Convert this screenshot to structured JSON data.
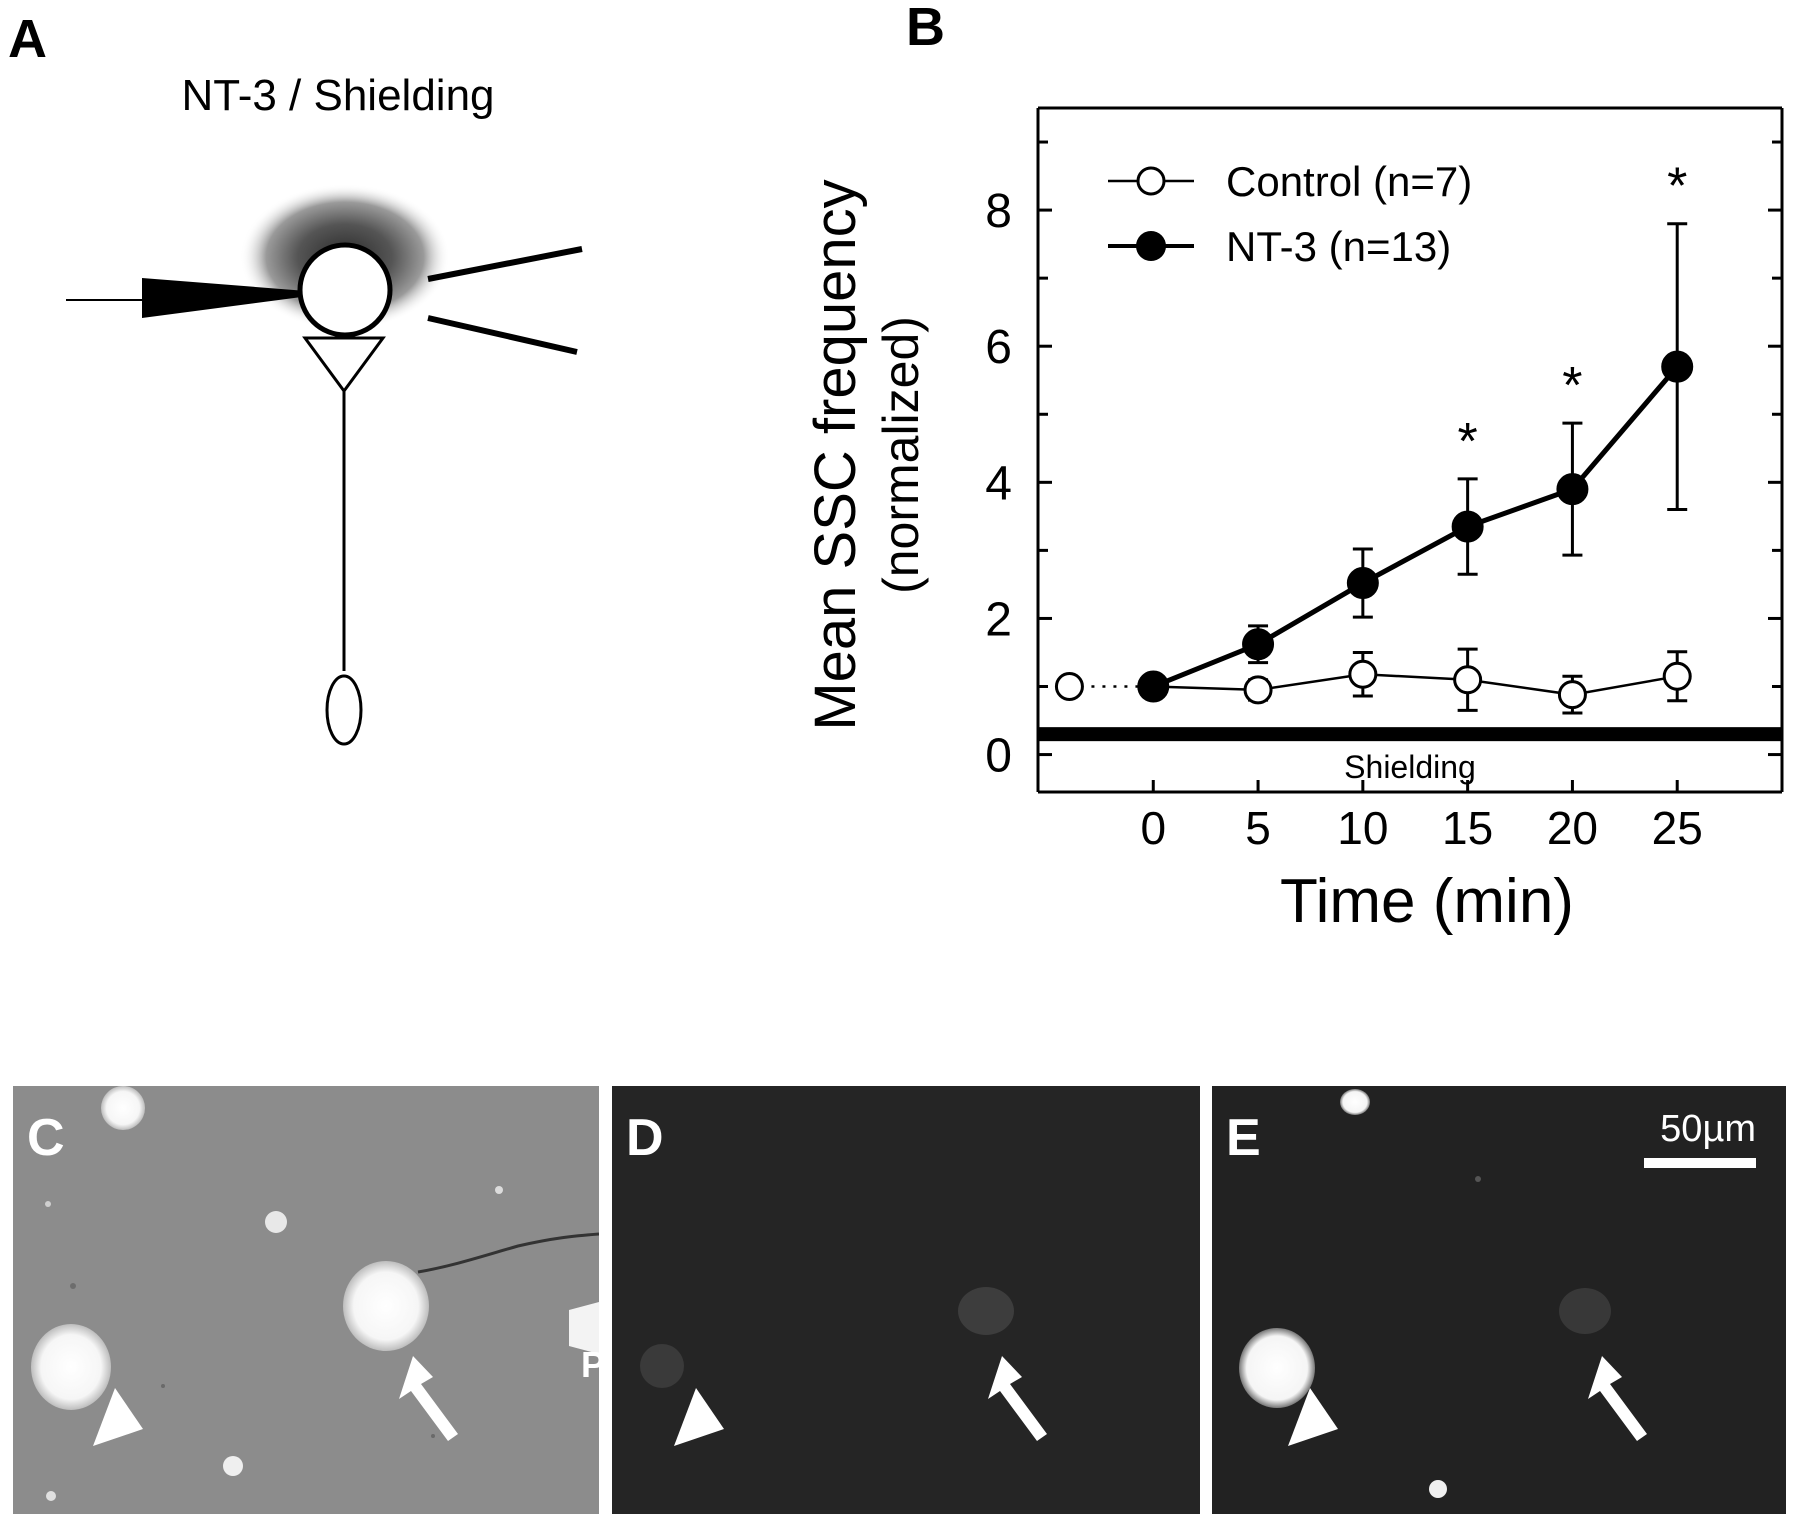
{
  "panels": {
    "a_letter": "A",
    "b_letter": "B",
    "c_letter": "C",
    "d_letter": "D",
    "e_letter": "E"
  },
  "panel_a": {
    "title": "NT-3 / Shielding"
  },
  "panel_e": {
    "scale_bar_label": "50µm"
  },
  "panel_c": {
    "pipette_label": "P"
  },
  "chart_data": {
    "type": "line",
    "xlabel": "Time (min)",
    "ylabel_line1": "Mean SSC frequency",
    "ylabel_line2": "(normalized)",
    "xlim": [
      -5.5,
      30
    ],
    "ylim": [
      -0.55,
      9.5
    ],
    "xticks": [
      0,
      5,
      10,
      15,
      20,
      25
    ],
    "yticks": [
      0,
      2,
      4,
      6,
      8
    ],
    "legend_position": "top-left",
    "bar_label": "Shielding",
    "series": [
      {
        "name": "Control (n=7)",
        "marker": "open-circle",
        "x": [
          -4,
          0,
          5,
          10,
          15,
          20,
          25
        ],
        "y": [
          1.0,
          1.0,
          0.95,
          1.18,
          1.1,
          0.88,
          1.15
        ],
        "err": [
          0,
          0,
          0.15,
          0.32,
          0.45,
          0.27,
          0.36
        ]
      },
      {
        "name": "NT-3 (n=13)",
        "marker": "filled-circle",
        "x": [
          0,
          5,
          10,
          15,
          20,
          25
        ],
        "y": [
          1.0,
          1.62,
          2.52,
          3.35,
          3.9,
          5.7
        ],
        "err": [
          0,
          0.27,
          0.5,
          0.7,
          0.97,
          2.1
        ]
      }
    ],
    "significance_x": [
      15,
      20,
      25
    ],
    "significance_mark": "*"
  }
}
